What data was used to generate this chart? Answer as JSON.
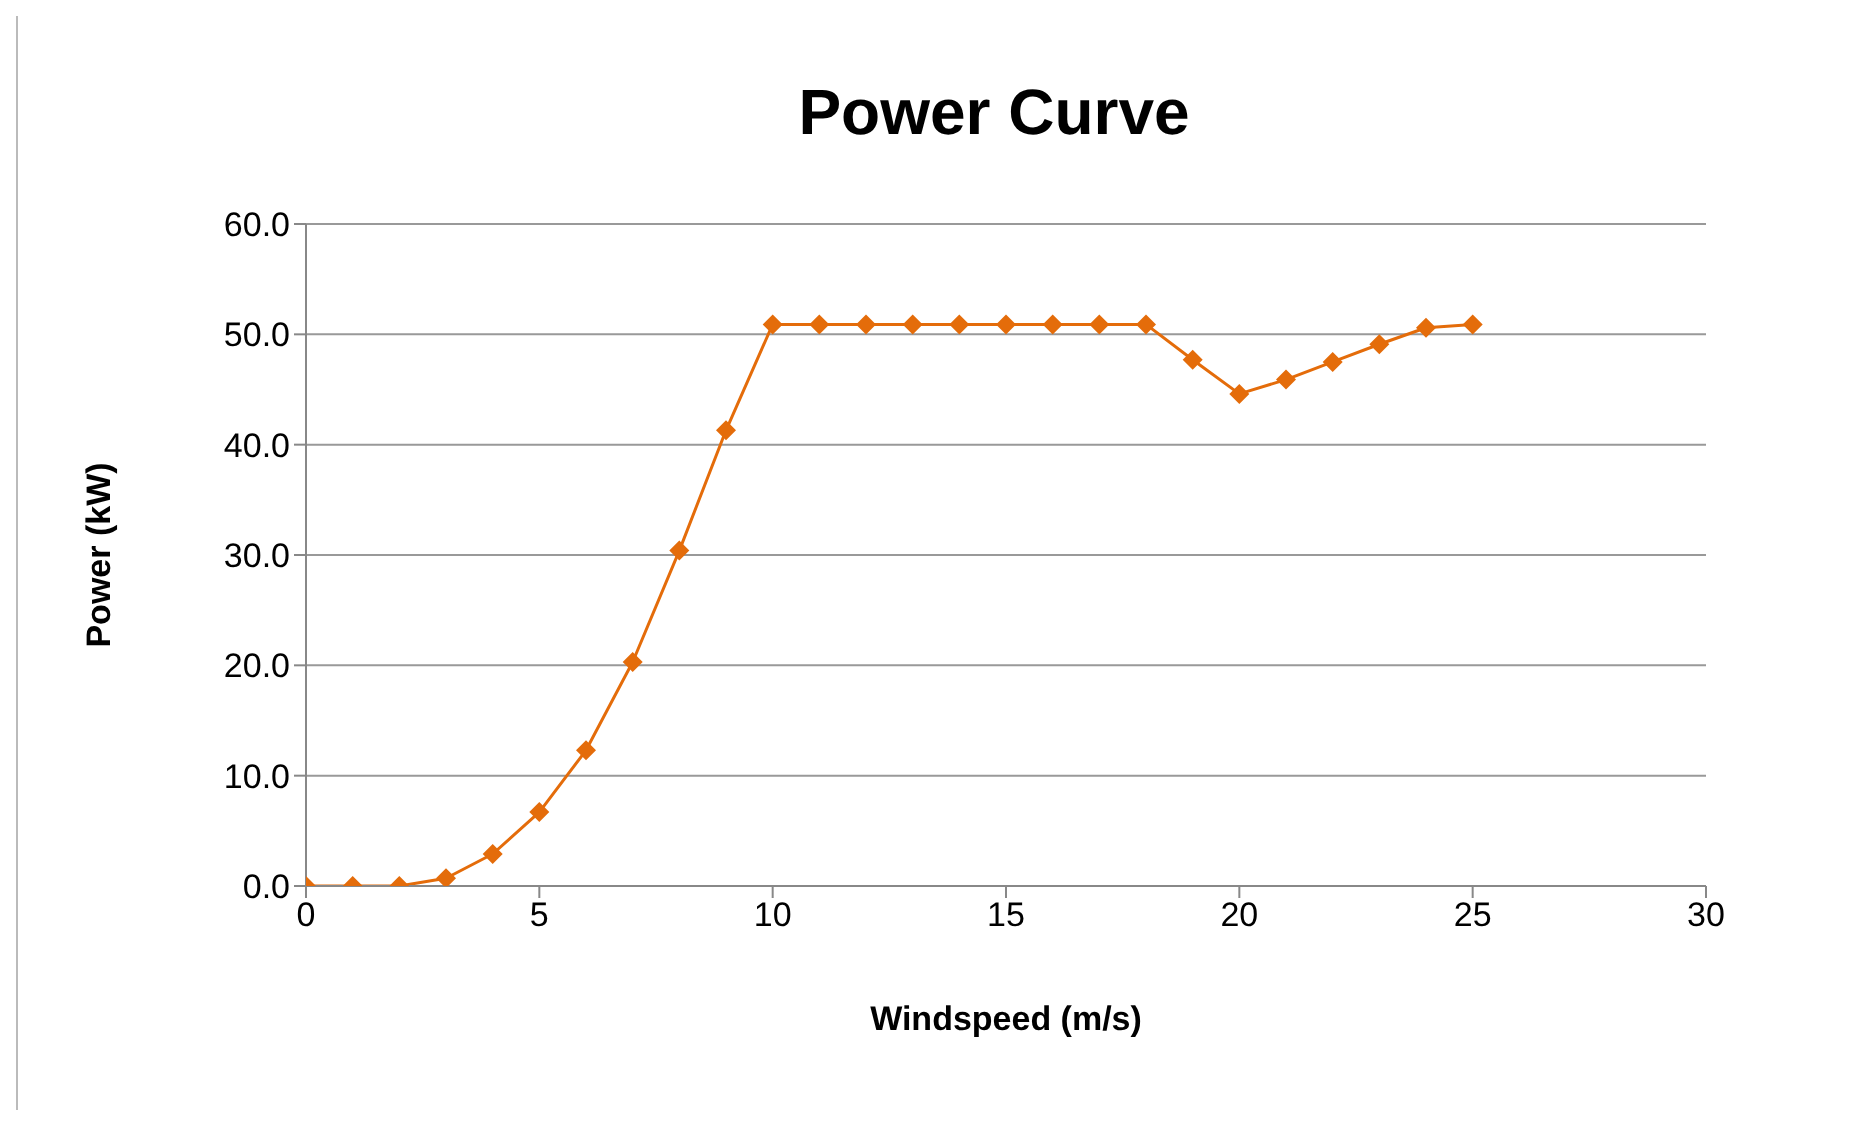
{
  "chart_data": {
    "type": "line",
    "title": "Power Curve",
    "xlabel": "Windspeed (m/s)",
    "ylabel": "Power (kW)",
    "x": [
      0,
      1,
      2,
      3,
      4,
      5,
      6,
      7,
      8,
      9,
      10,
      11,
      12,
      13,
      14,
      15,
      16,
      17,
      18,
      19,
      20,
      21,
      22,
      23,
      24,
      25
    ],
    "series": [
      {
        "color": "#e46c0a",
        "values": [
          0,
          0,
          0,
          0.7,
          2.9,
          6.7,
          12.3,
          20.3,
          30.4,
          41.3,
          50.9,
          50.9,
          50.9,
          50.9,
          50.9,
          50.9,
          50.9,
          50.9,
          50.9,
          47.7,
          44.6,
          45.9,
          47.5,
          49.1,
          50.6,
          50.9
        ]
      }
    ],
    "xlim": [
      0,
      30
    ],
    "xticks": [
      0,
      5,
      10,
      15,
      20,
      25,
      30
    ],
    "ylim": [
      0,
      60
    ],
    "yticks": [
      {
        "value": 0,
        "label": "0.0"
      },
      {
        "value": 10,
        "label": "10.0"
      },
      {
        "value": 20,
        "label": "20.0"
      },
      {
        "value": 30,
        "label": "30.0"
      },
      {
        "value": 40,
        "label": "40.0"
      },
      {
        "value": 50,
        "label": "50.0"
      },
      {
        "value": 60,
        "label": "60.0"
      }
    ],
    "grid": "y",
    "marker": "diamond",
    "line_style": "solid"
  }
}
